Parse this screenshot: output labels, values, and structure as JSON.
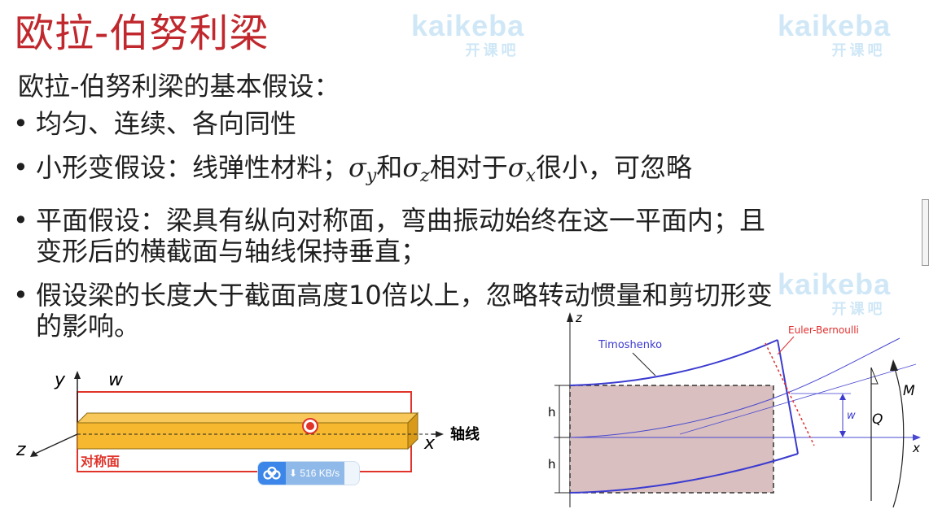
{
  "slide": {
    "title": "欧拉-伯努利梁",
    "subtitle": "欧拉-伯努利梁的基本假设：",
    "bullet_symbol": "•",
    "bullets": {
      "b1": "均匀、连续、各向同性",
      "b2": {
        "prefix": "小形变假设：线弹性材料；",
        "sym1": "σ",
        "sub1": "y",
        "and": "和",
        "sym2": "σ",
        "sub2": "z",
        "mid": "相对于",
        "sym3": "σ",
        "sub3": "x",
        "suffix": "很小，可忽略"
      },
      "b3": {
        "line1": "平面假设：梁具有纵向对称面，弯曲振动始终在这一平面内；且",
        "line2": "变形后的横截面与轴线保持垂直；"
      },
      "b4": {
        "line1": "假设梁的长度大于截面高度10倍以上，忽略转动惯量和剪切形变",
        "line2": "的影响。"
      }
    }
  },
  "watermark": {
    "brand": "kaikeba",
    "sub": "开课吧"
  },
  "left_diagram": {
    "y_label": "y",
    "w_label": "w",
    "z_label": "z",
    "x_label": "x",
    "axis_label": "轴线",
    "symmetry_label": "对称面",
    "beam_color": "#f5b82e",
    "plane_color": "#e0342a"
  },
  "right_diagram": {
    "z_label": "z",
    "x_label": "x",
    "timoshenko_label": "Timoshenko",
    "euler_label": "Euler-Bernoulli",
    "h_label_top": "h",
    "h_label_bottom": "h",
    "w_label": "w",
    "q_label": "Q",
    "m_label": "M",
    "fill_color": "#d9bfbf"
  },
  "download": {
    "speed": "516 KB/s",
    "arrow": "⬇"
  }
}
